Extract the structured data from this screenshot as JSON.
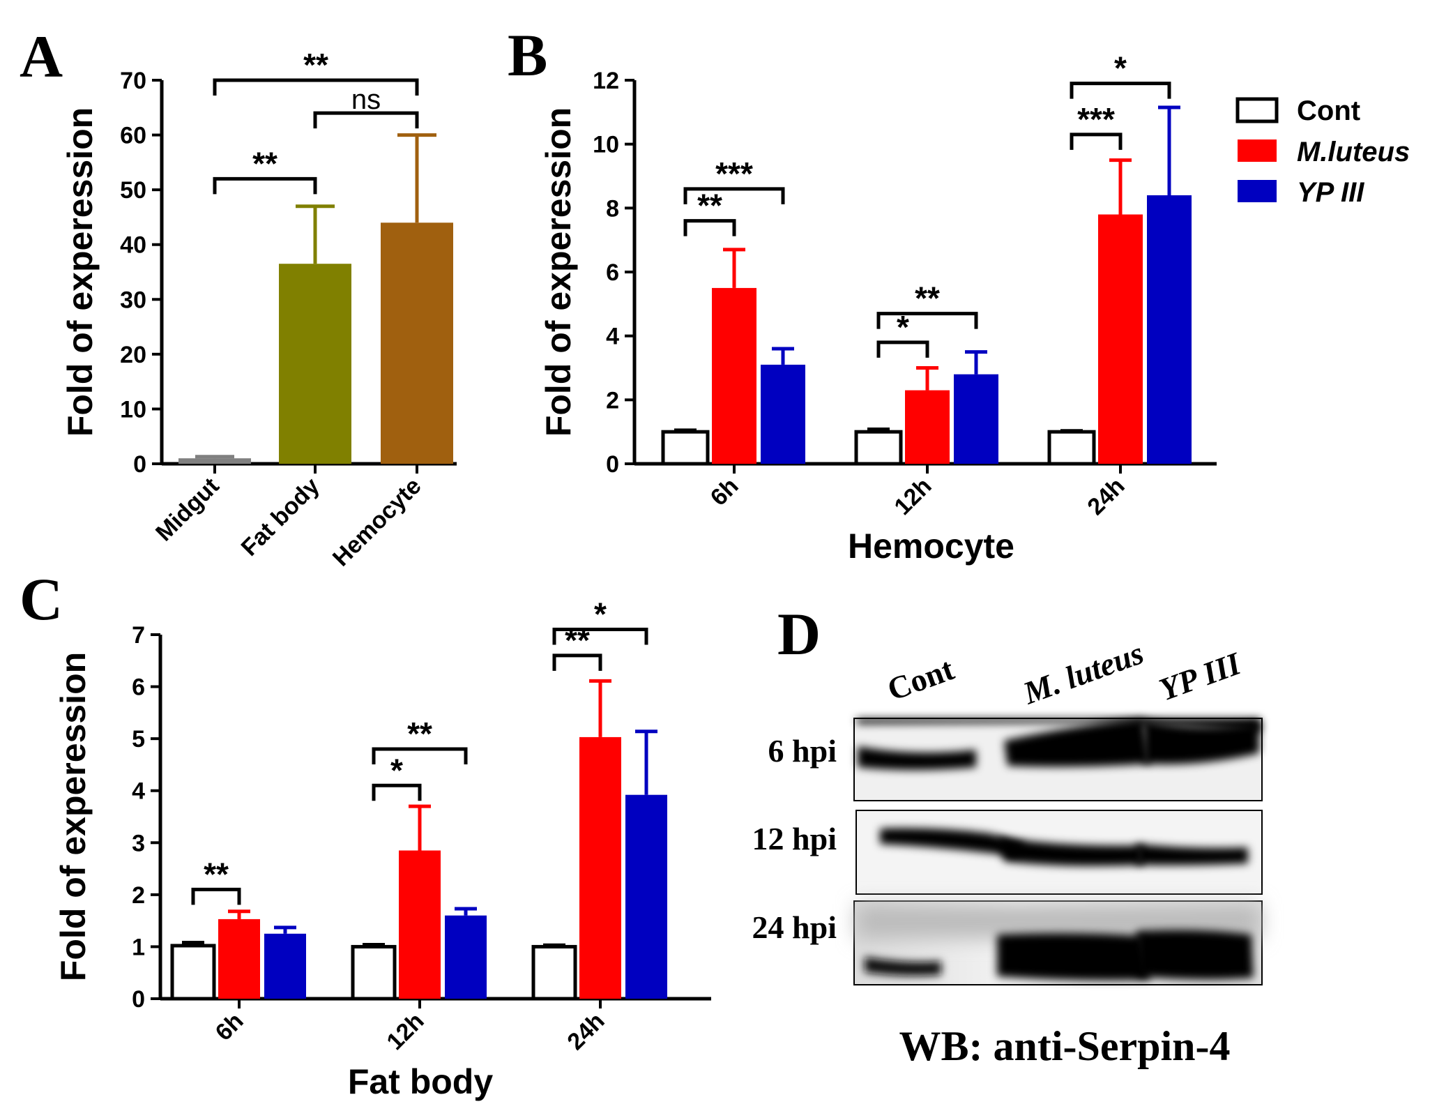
{
  "panels": {
    "A": "A",
    "B": "B",
    "C": "C",
    "D": "D"
  },
  "colors": {
    "midgut": "#808080",
    "fatbody": "#808000",
    "hemocyte": "#A0600F",
    "cont": "#ffffff",
    "mluteus": "#ff0000",
    "ypiii": "#0000c0"
  },
  "legend": [
    {
      "label": "Cont",
      "italic": false,
      "color": "#ffffff"
    },
    {
      "label": "M.luteus",
      "italic": true,
      "color": "#ff0000"
    },
    {
      "label": "YP III",
      "italic": true,
      "color": "#0000c0"
    }
  ],
  "chart_data": [
    {
      "id": "A",
      "type": "bar",
      "ylabel": "Fold of experession",
      "xlabel": "",
      "ylim": [
        0,
        70
      ],
      "yticks": [
        0,
        10,
        20,
        30,
        40,
        50,
        60,
        70
      ],
      "categories": [
        "Midgut",
        "Fat body",
        "Hemocyte"
      ],
      "values": [
        1,
        36.5,
        44
      ],
      "errors": [
        0.3,
        10.5,
        16
      ],
      "bar_colors": [
        "#808080",
        "#808000",
        "#A0600F"
      ],
      "significance": [
        {
          "from": 0,
          "to": 1,
          "label": "**",
          "y": 52
        },
        {
          "from": 1,
          "to": 2,
          "label": "ns",
          "y": 64
        },
        {
          "from": 0,
          "to": 2,
          "label": "**",
          "y": 70
        }
      ]
    },
    {
      "id": "B",
      "type": "bar",
      "ylabel": "Fold of experession",
      "xlabel": "Hemocyte",
      "ylim": [
        0,
        12
      ],
      "yticks": [
        0,
        2,
        4,
        6,
        8,
        10,
        12
      ],
      "categories": [
        "6h",
        "12h",
        "24h"
      ],
      "series": [
        {
          "name": "Cont",
          "values": [
            1.0,
            1.0,
            1.0
          ],
          "errors": [
            0.05,
            0.08,
            0.03
          ]
        },
        {
          "name": "M.luteus",
          "values": [
            5.5,
            2.3,
            7.8
          ],
          "errors": [
            1.2,
            0.7,
            1.7
          ]
        },
        {
          "name": "YP III",
          "values": [
            3.1,
            2.8,
            8.4
          ],
          "errors": [
            0.5,
            0.7,
            2.75
          ]
        }
      ],
      "significance": [
        {
          "group": 0,
          "from": 0,
          "to": 1,
          "label": "**",
          "y": 7.6
        },
        {
          "group": 0,
          "from": 0,
          "to": 2,
          "label": "***",
          "y": 8.6
        },
        {
          "group": 1,
          "from": 0,
          "to": 1,
          "label": "*",
          "y": 3.8
        },
        {
          "group": 1,
          "from": 0,
          "to": 2,
          "label": "**",
          "y": 4.7
        },
        {
          "group": 2,
          "from": 0,
          "to": 1,
          "label": "***",
          "y": 10.3
        },
        {
          "group": 2,
          "from": 0,
          "to": 2,
          "label": "*",
          "y": 11.9
        }
      ]
    },
    {
      "id": "C",
      "type": "bar",
      "ylabel": "Fold of experession",
      "xlabel": "Fat body",
      "ylim": [
        0,
        7
      ],
      "yticks": [
        0,
        1,
        2,
        3,
        4,
        5,
        6,
        7
      ],
      "categories": [
        "6h",
        "12h",
        "24h"
      ],
      "series": [
        {
          "name": "Cont",
          "values": [
            1.02,
            1.0,
            1.0
          ],
          "errors": [
            0.06,
            0.04,
            0.03
          ]
        },
        {
          "name": "M.luteus",
          "values": [
            1.53,
            2.85,
            5.03
          ],
          "errors": [
            0.15,
            0.85,
            1.08
          ]
        },
        {
          "name": "YP III",
          "values": [
            1.25,
            1.6,
            3.92
          ],
          "errors": [
            0.12,
            0.13,
            1.22
          ]
        }
      ],
      "significance": [
        {
          "group": 0,
          "from": 0,
          "to": 1,
          "label": "**",
          "y": 2.1
        },
        {
          "group": 1,
          "from": 0,
          "to": 1,
          "label": "*",
          "y": 4.1
        },
        {
          "group": 1,
          "from": 0,
          "to": 2,
          "label": "**",
          "y": 4.8
        },
        {
          "group": 2,
          "from": 0,
          "to": 1,
          "label": "**",
          "y": 6.6
        },
        {
          "group": 2,
          "from": 0,
          "to": 2,
          "label": "*",
          "y": 7.1
        }
      ]
    }
  ],
  "western_blot": {
    "lanes": [
      "Cont",
      "M. luteus",
      "YP III"
    ],
    "rows": [
      "6 hpi",
      "12 hpi",
      "24 hpi"
    ],
    "caption": "WB: anti-Serpin-4"
  }
}
